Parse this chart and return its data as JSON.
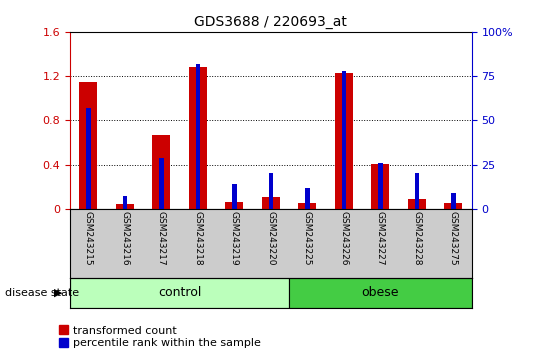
{
  "title": "GDS3688 / 220693_at",
  "samples": [
    "GSM243215",
    "GSM243216",
    "GSM243217",
    "GSM243218",
    "GSM243219",
    "GSM243220",
    "GSM243225",
    "GSM243226",
    "GSM243227",
    "GSM243228",
    "GSM243275"
  ],
  "red_values": [
    1.15,
    0.04,
    0.67,
    1.28,
    0.06,
    0.11,
    0.05,
    1.23,
    0.41,
    0.09,
    0.05
  ],
  "blue_pct": [
    57,
    7,
    29,
    82,
    14,
    20,
    12,
    78,
    26,
    20,
    9
  ],
  "groups": [
    {
      "label": "control",
      "n": 6,
      "color": "#bbffbb"
    },
    {
      "label": "obese",
      "n": 5,
      "color": "#44cc44"
    }
  ],
  "ylim_left": [
    0,
    1.6
  ],
  "ylim_right": [
    0,
    100
  ],
  "yticks_left": [
    0.0,
    0.4,
    0.8,
    1.2,
    1.6
  ],
  "yticks_right": [
    0,
    25,
    50,
    75,
    100
  ],
  "ytick_right_labels": [
    "0",
    "25",
    "50",
    "75",
    "100%"
  ],
  "red_color": "#cc0000",
  "blue_color": "#0000cc",
  "axis_left_color": "#cc0000",
  "axis_right_color": "#0000cc",
  "red_bar_width": 0.5,
  "blue_bar_width": 0.12,
  "tick_label_area_color": "#cccccc",
  "control_color": "#bbffbb",
  "obese_color": "#44cc44",
  "legend_red_label": "transformed count",
  "legend_blue_label": "percentile rank within the sample",
  "disease_state_label": "disease state"
}
